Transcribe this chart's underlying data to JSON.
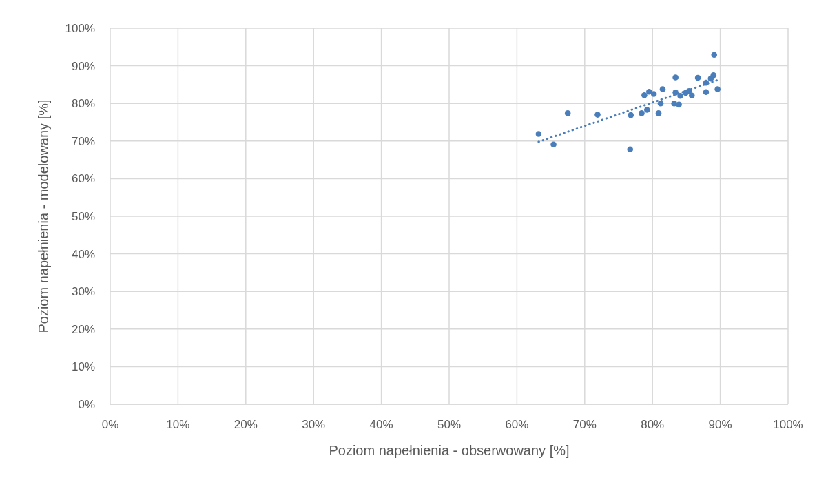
{
  "chart_data": {
    "type": "scatter",
    "xlabel": "Poziom napełnienia - obserwowany [%]",
    "ylabel": "Poziom napełnienia - modelowany [%]",
    "xlim": [
      0,
      100
    ],
    "ylim": [
      0,
      100
    ],
    "xticks": [
      {
        "value": 0,
        "label": "0%"
      },
      {
        "value": 10,
        "label": "10%"
      },
      {
        "value": 20,
        "label": "20%"
      },
      {
        "value": 30,
        "label": "30%"
      },
      {
        "value": 40,
        "label": "40%"
      },
      {
        "value": 50,
        "label": "50%"
      },
      {
        "value": 60,
        "label": "60%"
      },
      {
        "value": 70,
        "label": "70%"
      },
      {
        "value": 80,
        "label": "80%"
      },
      {
        "value": 90,
        "label": "90%"
      },
      {
        "value": 100,
        "label": "100%"
      }
    ],
    "yticks": [
      {
        "value": 0,
        "label": "0%"
      },
      {
        "value": 10,
        "label": "10%"
      },
      {
        "value": 20,
        "label": "20%"
      },
      {
        "value": 30,
        "label": "30%"
      },
      {
        "value": 40,
        "label": "40%"
      },
      {
        "value": 50,
        "label": "50%"
      },
      {
        "value": 60,
        "label": "60%"
      },
      {
        "value": 70,
        "label": "70%"
      },
      {
        "value": 80,
        "label": "80%"
      },
      {
        "value": 90,
        "label": "90%"
      },
      {
        "value": 100,
        "label": "100%"
      }
    ],
    "grid": true,
    "marker": "circle",
    "series": [
      {
        "color": "#4a7ebb",
        "x": [
          63.2,
          65.4,
          67.5,
          71.9,
          76.7,
          76.8,
          78.4,
          78.8,
          79.2,
          79.5,
          80.2,
          80.9,
          81.2,
          81.5,
          83.4,
          83.4,
          83.2,
          83.9,
          84.1,
          84.9,
          85.4,
          85.8,
          86.7,
          87.9,
          87.9,
          88.6,
          89.0,
          89.1,
          89.6
        ],
        "values": [
          71.9,
          69.1,
          77.4,
          77.0,
          67.8,
          76.9,
          77.4,
          82.2,
          78.3,
          83.1,
          82.5,
          77.4,
          80.0,
          83.8,
          86.9,
          82.9,
          80.0,
          79.7,
          82.0,
          82.8,
          83.3,
          82.1,
          86.8,
          85.5,
          83.0,
          86.6,
          87.5,
          92.9,
          83.8
        ]
      },
      {
        "type": "line",
        "color": "#4a7ebb",
        "line_style": "dotted",
        "marker": "none",
        "x": [
          63.2,
          89.6
        ],
        "values": [
          69.8,
          86.2
        ]
      }
    ]
  }
}
